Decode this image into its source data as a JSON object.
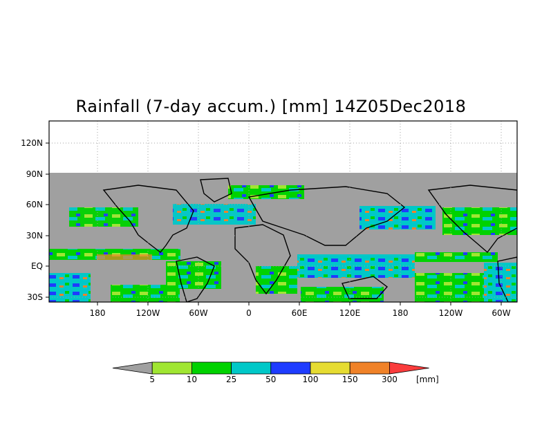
{
  "title": "Rainfall (7-day accum.) [mm] 14Z05Dec2018",
  "y_ticks": [
    "120N",
    "90N",
    "60N",
    "30N",
    "EQ",
    "30S"
  ],
  "x_ticks": [
    "180",
    "120W",
    "60W",
    "0",
    "60E",
    "120E",
    "180",
    "120W",
    "60W"
  ],
  "legend": {
    "bins": [
      {
        "color": "#a0a0a0",
        "label": ""
      },
      {
        "color": "#a0e632",
        "label": "5"
      },
      {
        "color": "#00d200",
        "label": "10"
      },
      {
        "color": "#00c8c8",
        "label": "25"
      },
      {
        "color": "#1e3cff",
        "label": "50"
      },
      {
        "color": "#e6dc32",
        "label": "100"
      },
      {
        "color": "#f08228",
        "label": "150"
      },
      {
        "color": "#fa3c3c",
        "label": "300"
      }
    ],
    "unit": "[mm]"
  },
  "colors": {
    "no_data": "#ffffff",
    "background_rain_free": "#a0a0a0",
    "coastline": "#000000",
    "grid": "#a0a0a0"
  }
}
